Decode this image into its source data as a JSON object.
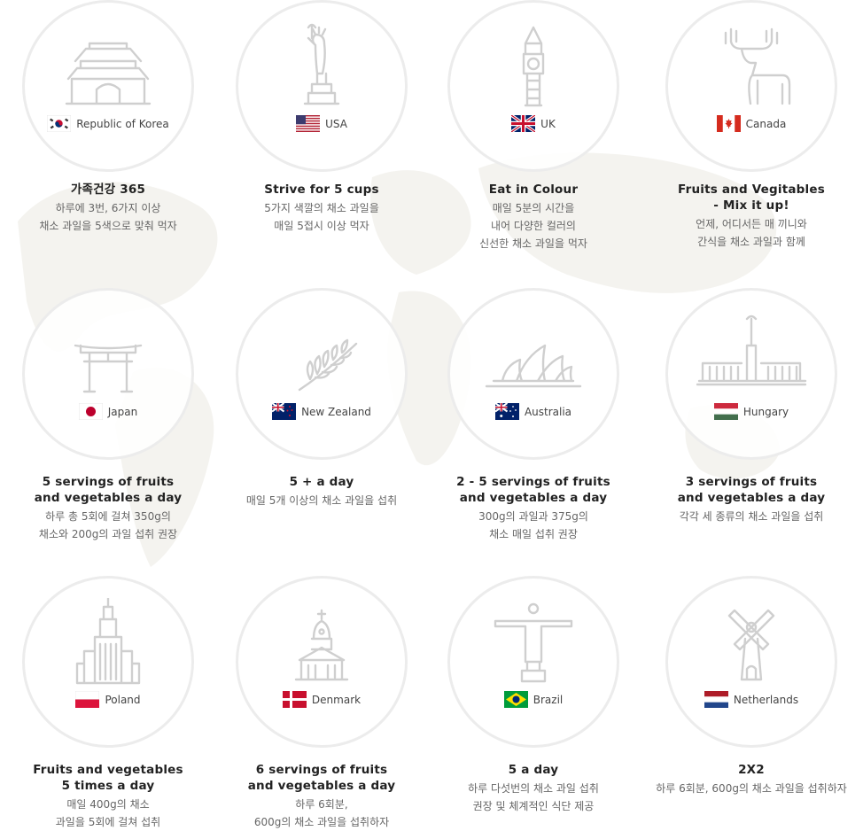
{
  "colors": {
    "icon_stroke": "#cfcfcf",
    "circle_border": "#ececec",
    "title": "#222222",
    "desc": "#666666"
  },
  "cards": [
    {
      "country": "Republic of Korea",
      "flag": "korea-flag-icon",
      "landmark": "namdaemun-gate-icon",
      "title": "가족건강 365",
      "desc": "하루에 3번, 6가지 이상\n채소 과일을 5색으로 맞춰 먹자"
    },
    {
      "country": "USA",
      "flag": "usa-flag-icon",
      "landmark": "statue-of-liberty-icon",
      "title": "Strive for 5 cups",
      "desc": "5가지 색깔의 채소 과일을\n매일 5접시 이상 먹자"
    },
    {
      "country": "UK",
      "flag": "uk-flag-icon",
      "landmark": "big-ben-icon",
      "title": "Eat in Colour",
      "desc": "매일 5분의 시간을\n내어 다양한 컬러의\n신선한 채소 과일을 먹자"
    },
    {
      "country": "Canada",
      "flag": "canada-flag-icon",
      "landmark": "moose-icon",
      "title": "Fruits and Vegitables\n- Mix it up!",
      "desc": "언제, 어디서든 매 끼니와\n간식을 채소 과일과 함께"
    },
    {
      "country": "Japan",
      "flag": "japan-flag-icon",
      "landmark": "torii-gate-icon",
      "title": "5 servings of fruits\nand vegetables a day",
      "desc": "하루 총 5회에 걸쳐 350g의\n채소와 200g의 과일 섭취 권장"
    },
    {
      "country": "New Zealand",
      "flag": "new-zealand-flag-icon",
      "landmark": "silver-fern-icon",
      "title": "5 + a day",
      "desc": "매일 5개 이상의 채소 과일을 섭취"
    },
    {
      "country": "Australia",
      "flag": "australia-flag-icon",
      "landmark": "sydney-opera-house-icon",
      "title": "2 - 5 servings of fruits\nand vegetables a day",
      "desc": "300g의 과일과 375g의\n채소 매일 섭취 권장"
    },
    {
      "country": "Hungary",
      "flag": "hungary-flag-icon",
      "landmark": "heroes-square-icon",
      "title": "3 servings of fruits\nand vegetables a day",
      "desc": "각각 세 종류의 채소 과일을 섭취"
    },
    {
      "country": "Poland",
      "flag": "poland-flag-icon",
      "landmark": "palace-of-culture-icon",
      "title": "Fruits and vegetables\n5 times a day",
      "desc": "매일 400g의 채소\n과일을 5회에 걸쳐 섭취"
    },
    {
      "country": "Denmark",
      "flag": "denmark-flag-icon",
      "landmark": "church-icon",
      "title": "6 servings of fruits\nand vegetables a day",
      "desc": "하루 6회분,\n600g의 채소 과일을 섭취하자"
    },
    {
      "country": "Brazil",
      "flag": "brazil-flag-icon",
      "landmark": "christ-the-redeemer-icon",
      "title": "5 a day",
      "desc": "하루 다섯번의 채소 과일 섭취\n권장 및 체계적인 식단 제공"
    },
    {
      "country": "Netherlands",
      "flag": "netherlands-flag-icon",
      "landmark": "windmill-icon",
      "title": "2X2",
      "desc": "하루 6회분, 600g의 채소 과일을 섭취하자"
    }
  ]
}
